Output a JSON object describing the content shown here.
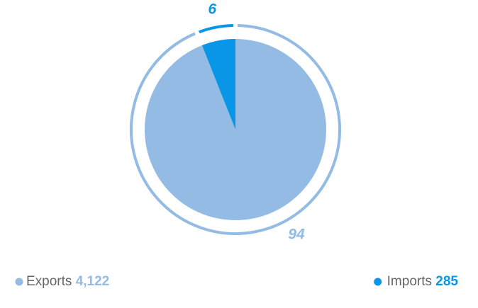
{
  "chart_data": {
    "type": "pie",
    "series": [
      {
        "name": "Exports",
        "color": "#93bbe4",
        "values": [
          94
        ]
      },
      {
        "name": "Imports",
        "color": "#0a96e6",
        "values": [
          6
        ]
      }
    ],
    "legend_values": [
      {
        "value": 4122,
        "label": "4,122"
      },
      {
        "value": 285,
        "label": "285"
      }
    ]
  }
}
